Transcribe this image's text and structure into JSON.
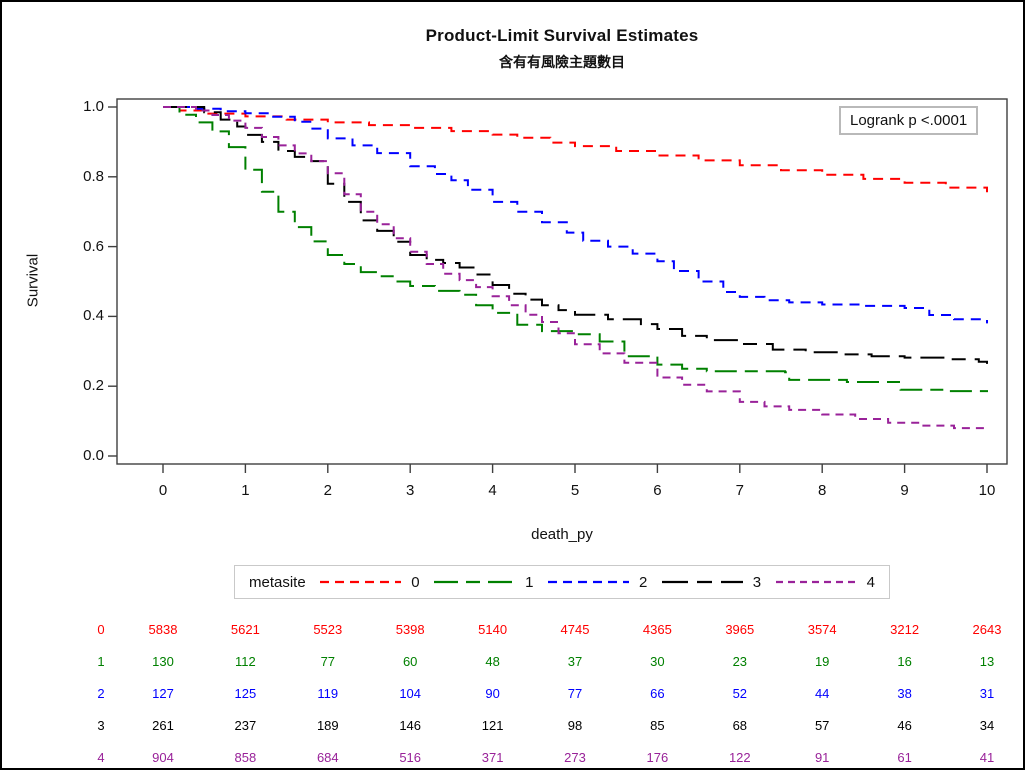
{
  "title": "Product-Limit Survival Estimates",
  "subtitle": "含有有風險主題數目",
  "annotation": "Logrank p <.0001",
  "axes": {
    "y_label": "Survival",
    "x_label": "death_py",
    "y_ticks": [
      "1.0",
      "0.8",
      "0.6",
      "0.4",
      "0.2",
      "0.0"
    ],
    "x_ticks": [
      "0",
      "1",
      "2",
      "3",
      "4",
      "5",
      "6",
      "7",
      "8",
      "9",
      "10"
    ]
  },
  "legend": {
    "title": "metasite",
    "entries": [
      {
        "label": "0",
        "color": "#ff0000",
        "dasharray": "9 6"
      },
      {
        "label": "1",
        "color": "#008000",
        "dasharray": "24 8 14 8"
      },
      {
        "label": "2",
        "color": "#0000ff",
        "dasharray": "9 6"
      },
      {
        "label": "3",
        "color": "#000000",
        "dasharray": "26 9 15 9"
      },
      {
        "label": "4",
        "color": "#992299",
        "dasharray": "7 5"
      }
    ]
  },
  "chart_data": {
    "type": "line",
    "step": true,
    "title": "Product-Limit Survival Estimates",
    "subtitle": "含有有風險主題數目",
    "xlabel": "death_py",
    "ylabel": "Survival",
    "xlim": [
      0,
      10
    ],
    "ylim": [
      0.0,
      1.0
    ],
    "legend_position": "bottom",
    "annotation": "Logrank p <.0001",
    "series": [
      {
        "name": "0",
        "color": "#ff0000",
        "line_style": "short-dash",
        "dasharray": "10 7",
        "points": [
          [
            0,
            1.0
          ],
          [
            0.2,
            0.99
          ],
          [
            0.5,
            0.981
          ],
          [
            1,
            0.973
          ],
          [
            1.5,
            0.964
          ],
          [
            2,
            0.956
          ],
          [
            2.5,
            0.948
          ],
          [
            3,
            0.94
          ],
          [
            3.5,
            0.931
          ],
          [
            4,
            0.921
          ],
          [
            4.3,
            0.912
          ],
          [
            4.7,
            0.898
          ],
          [
            5,
            0.888
          ],
          [
            5.5,
            0.874
          ],
          [
            6,
            0.861
          ],
          [
            6.5,
            0.847
          ],
          [
            7,
            0.833
          ],
          [
            7.5,
            0.819
          ],
          [
            8,
            0.806
          ],
          [
            8.5,
            0.794
          ],
          [
            9,
            0.783
          ],
          [
            9.5,
            0.769
          ],
          [
            10,
            0.756
          ]
        ]
      },
      {
        "name": "1",
        "color": "#008000",
        "line_style": "long-dash",
        "dasharray": "22 8 13 8",
        "points": [
          [
            0,
            1.0
          ],
          [
            0.2,
            0.978
          ],
          [
            0.4,
            0.956
          ],
          [
            0.6,
            0.93
          ],
          [
            0.8,
            0.885
          ],
          [
            1,
            0.82
          ],
          [
            1.2,
            0.757
          ],
          [
            1.4,
            0.7
          ],
          [
            1.6,
            0.656
          ],
          [
            1.8,
            0.615
          ],
          [
            2,
            0.576
          ],
          [
            2.2,
            0.55
          ],
          [
            2.4,
            0.527
          ],
          [
            2.6,
            0.515
          ],
          [
            2.8,
            0.5
          ],
          [
            3,
            0.487
          ],
          [
            3.3,
            0.473
          ],
          [
            3.6,
            0.462
          ],
          [
            3.8,
            0.432
          ],
          [
            4,
            0.41
          ],
          [
            4.3,
            0.376
          ],
          [
            4.6,
            0.358
          ],
          [
            5,
            0.349
          ],
          [
            5.3,
            0.328
          ],
          [
            5.6,
            0.286
          ],
          [
            6,
            0.262
          ],
          [
            6.3,
            0.25
          ],
          [
            6.6,
            0.243
          ],
          [
            7.55,
            0.24
          ],
          [
            7.6,
            0.218
          ],
          [
            8.3,
            0.212
          ],
          [
            8.95,
            0.19
          ],
          [
            9.5,
            0.186
          ],
          [
            10,
            0.183
          ]
        ]
      },
      {
        "name": "2",
        "color": "#0000ff",
        "line_style": "short-dash",
        "dasharray": "10 7",
        "points": [
          [
            0,
            1.0
          ],
          [
            0.4,
            0.995
          ],
          [
            0.7,
            0.988
          ],
          [
            1,
            0.982
          ],
          [
            1.3,
            0.972
          ],
          [
            1.6,
            0.958
          ],
          [
            1.8,
            0.938
          ],
          [
            2,
            0.91
          ],
          [
            2.3,
            0.89
          ],
          [
            2.6,
            0.868
          ],
          [
            3,
            0.83
          ],
          [
            3.3,
            0.808
          ],
          [
            3.5,
            0.79
          ],
          [
            3.7,
            0.763
          ],
          [
            4,
            0.728
          ],
          [
            4.3,
            0.7
          ],
          [
            4.6,
            0.67
          ],
          [
            4.9,
            0.64
          ],
          [
            5.1,
            0.617
          ],
          [
            5.4,
            0.6
          ],
          [
            5.7,
            0.58
          ],
          [
            6,
            0.558
          ],
          [
            6.2,
            0.53
          ],
          [
            6.5,
            0.5
          ],
          [
            6.8,
            0.47
          ],
          [
            7,
            0.456
          ],
          [
            7.3,
            0.446
          ],
          [
            7.6,
            0.44
          ],
          [
            8,
            0.434
          ],
          [
            8.5,
            0.43
          ],
          [
            9,
            0.424
          ],
          [
            9.3,
            0.404
          ],
          [
            9.6,
            0.392
          ],
          [
            10,
            0.38
          ]
        ]
      },
      {
        "name": "3",
        "color": "#000000",
        "line_style": "long-dash",
        "dasharray": "24 9 14 9",
        "points": [
          [
            0,
            1.0
          ],
          [
            0.5,
            0.985
          ],
          [
            0.7,
            0.964
          ],
          [
            0.9,
            0.944
          ],
          [
            1,
            0.92
          ],
          [
            1.2,
            0.9
          ],
          [
            1.4,
            0.874
          ],
          [
            1.6,
            0.857
          ],
          [
            1.8,
            0.845
          ],
          [
            2,
            0.78
          ],
          [
            2.2,
            0.728
          ],
          [
            2.4,
            0.675
          ],
          [
            2.6,
            0.645
          ],
          [
            2.8,
            0.614
          ],
          [
            3,
            0.576
          ],
          [
            3.2,
            0.562
          ],
          [
            3.4,
            0.553
          ],
          [
            3.6,
            0.54
          ],
          [
            3.8,
            0.52
          ],
          [
            4,
            0.49
          ],
          [
            4.2,
            0.465
          ],
          [
            4.4,
            0.448
          ],
          [
            4.6,
            0.432
          ],
          [
            4.8,
            0.418
          ],
          [
            5,
            0.405
          ],
          [
            5.4,
            0.392
          ],
          [
            5.8,
            0.378
          ],
          [
            6,
            0.364
          ],
          [
            6.3,
            0.344
          ],
          [
            6.6,
            0.332
          ],
          [
            7,
            0.321
          ],
          [
            7.4,
            0.305
          ],
          [
            7.8,
            0.297
          ],
          [
            8.2,
            0.291
          ],
          [
            8.6,
            0.286
          ],
          [
            9,
            0.282
          ],
          [
            9.5,
            0.277
          ],
          [
            9.9,
            0.27
          ],
          [
            10,
            0.264
          ]
        ]
      },
      {
        "name": "4",
        "color": "#992299",
        "line_style": "short-dash",
        "dasharray": "8 6",
        "points": [
          [
            0,
            1.0
          ],
          [
            0.4,
            0.99
          ],
          [
            0.6,
            0.977
          ],
          [
            0.8,
            0.961
          ],
          [
            1,
            0.94
          ],
          [
            1.2,
            0.914
          ],
          [
            1.4,
            0.89
          ],
          [
            1.6,
            0.867
          ],
          [
            1.8,
            0.845
          ],
          [
            2,
            0.81
          ],
          [
            2.2,
            0.75
          ],
          [
            2.4,
            0.7
          ],
          [
            2.6,
            0.664
          ],
          [
            2.8,
            0.624
          ],
          [
            3,
            0.585
          ],
          [
            3.2,
            0.55
          ],
          [
            3.4,
            0.522
          ],
          [
            3.6,
            0.504
          ],
          [
            3.8,
            0.484
          ],
          [
            4,
            0.458
          ],
          [
            4.2,
            0.432
          ],
          [
            4.4,
            0.405
          ],
          [
            4.6,
            0.384
          ],
          [
            4.8,
            0.352
          ],
          [
            5,
            0.32
          ],
          [
            5.3,
            0.294
          ],
          [
            5.6,
            0.267
          ],
          [
            6,
            0.225
          ],
          [
            6.3,
            0.204
          ],
          [
            6.6,
            0.185
          ],
          [
            7,
            0.155
          ],
          [
            7.3,
            0.142
          ],
          [
            7.6,
            0.132
          ],
          [
            8,
            0.119
          ],
          [
            8.4,
            0.106
          ],
          [
            8.8,
            0.095
          ],
          [
            9.2,
            0.087
          ],
          [
            9.6,
            0.08
          ],
          [
            10,
            0.074
          ]
        ]
      }
    ]
  },
  "risk_table": {
    "times": [
      0,
      1,
      2,
      3,
      4,
      5,
      6,
      7,
      8,
      9,
      10
    ],
    "rows": [
      {
        "label": "0",
        "color": "#ff0000",
        "values": [
          "5838",
          "5621",
          "5523",
          "5398",
          "5140",
          "4745",
          "4365",
          "3965",
          "3574",
          "3212",
          "2643"
        ]
      },
      {
        "label": "1",
        "color": "#008000",
        "values": [
          "130",
          "112",
          "77",
          "60",
          "48",
          "37",
          "30",
          "23",
          "19",
          "16",
          "13"
        ]
      },
      {
        "label": "2",
        "color": "#0000ff",
        "values": [
          "127",
          "125",
          "119",
          "104",
          "90",
          "77",
          "66",
          "52",
          "44",
          "38",
          "31"
        ]
      },
      {
        "label": "3",
        "color": "#000000",
        "values": [
          "261",
          "237",
          "189",
          "146",
          "121",
          "98",
          "85",
          "68",
          "57",
          "46",
          "34"
        ]
      },
      {
        "label": "4",
        "color": "#992299",
        "values": [
          "904",
          "858",
          "684",
          "516",
          "371",
          "273",
          "176",
          "122",
          "91",
          "61",
          "41"
        ]
      }
    ]
  }
}
